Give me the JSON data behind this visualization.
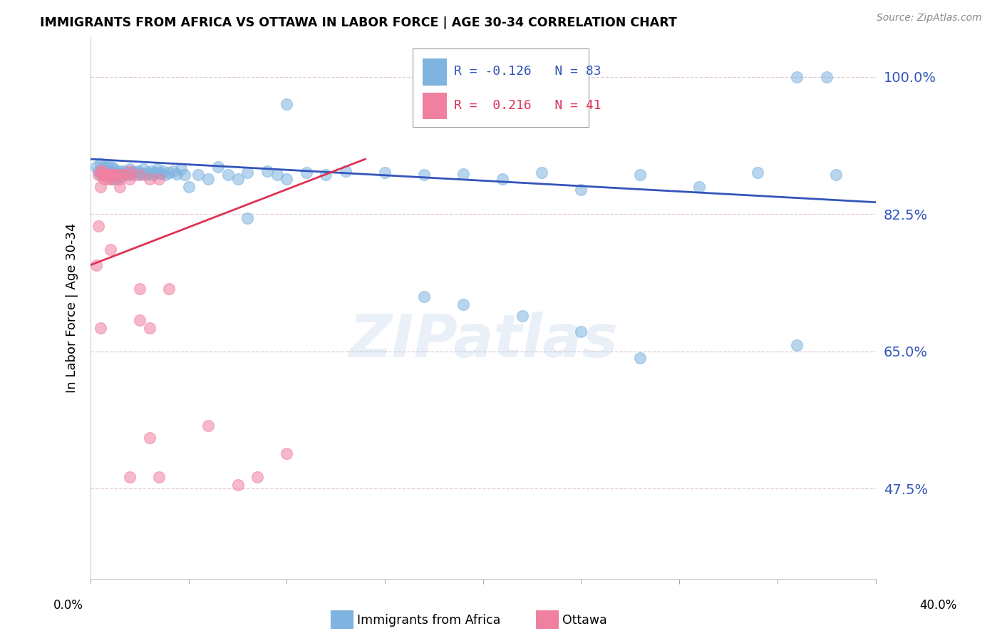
{
  "title": "IMMIGRANTS FROM AFRICA VS OTTAWA IN LABOR FORCE | AGE 30-34 CORRELATION CHART",
  "source": "Source: ZipAtlas.com",
  "ylabel": "In Labor Force | Age 30-34",
  "xlim": [
    0.0,
    0.4
  ],
  "ylim": [
    0.36,
    1.05
  ],
  "legend_R_blue": "-0.126",
  "legend_N_blue": "83",
  "legend_R_pink": "0.216",
  "legend_N_pink": "41",
  "blue_color": "#7fb3e0",
  "pink_color": "#f080a0",
  "trendline_blue_color": "#3355bb",
  "trendline_pink_color": "#dd3355",
  "watermark": "ZIPatlas",
  "blue_trendline_x": [
    0.0,
    0.4
  ],
  "blue_trendline_y": [
    0.895,
    0.84
  ],
  "pink_trendline_x": [
    0.0,
    0.14
  ],
  "pink_trendline_y": [
    0.76,
    0.895
  ],
  "blue_scatter_x": [
    0.003,
    0.004,
    0.005,
    0.005,
    0.006,
    0.007,
    0.007,
    0.008,
    0.008,
    0.009,
    0.009,
    0.01,
    0.01,
    0.011,
    0.011,
    0.012,
    0.012,
    0.013,
    0.013,
    0.014,
    0.015,
    0.015,
    0.016,
    0.017,
    0.018,
    0.019,
    0.02,
    0.021,
    0.022,
    0.023,
    0.024,
    0.025,
    0.026,
    0.027,
    0.028,
    0.029,
    0.03,
    0.031,
    0.032,
    0.033,
    0.034,
    0.035,
    0.036,
    0.037,
    0.038,
    0.04,
    0.042,
    0.044,
    0.046,
    0.048,
    0.05,
    0.055,
    0.06,
    0.065,
    0.07,
    0.075,
    0.08,
    0.09,
    0.095,
    0.1,
    0.11,
    0.12,
    0.13,
    0.15,
    0.17,
    0.19,
    0.21,
    0.23,
    0.25,
    0.28,
    0.31,
    0.34,
    0.36,
    0.375,
    0.36,
    0.38,
    0.17,
    0.19,
    0.22,
    0.25,
    0.28,
    0.1,
    0.08
  ],
  "blue_scatter_y": [
    0.885,
    0.88,
    0.89,
    0.875,
    0.885,
    0.88,
    0.875,
    0.885,
    0.88,
    0.875,
    0.885,
    0.88,
    0.875,
    0.885,
    0.87,
    0.882,
    0.875,
    0.878,
    0.87,
    0.875,
    0.88,
    0.872,
    0.876,
    0.88,
    0.875,
    0.878,
    0.882,
    0.876,
    0.879,
    0.875,
    0.88,
    0.878,
    0.876,
    0.882,
    0.875,
    0.878,
    0.876,
    0.88,
    0.875,
    0.878,
    0.882,
    0.878,
    0.876,
    0.88,
    0.875,
    0.878,
    0.88,
    0.876,
    0.882,
    0.875,
    0.86,
    0.875,
    0.87,
    0.885,
    0.875,
    0.87,
    0.878,
    0.88,
    0.875,
    0.87,
    0.878,
    0.875,
    0.88,
    0.878,
    0.875,
    0.876,
    0.87,
    0.878,
    0.856,
    0.875,
    0.86,
    0.878,
    0.658,
    1.0,
    1.0,
    0.875,
    0.72,
    0.71,
    0.695,
    0.675,
    0.642,
    0.965,
    0.82
  ],
  "pink_scatter_x": [
    0.003,
    0.004,
    0.004,
    0.005,
    0.005,
    0.006,
    0.006,
    0.007,
    0.007,
    0.008,
    0.009,
    0.009,
    0.01,
    0.01,
    0.011,
    0.012,
    0.014,
    0.016,
    0.02,
    0.025,
    0.01,
    0.015,
    0.02,
    0.025,
    0.03,
    0.035,
    0.04,
    0.005,
    0.008,
    0.012,
    0.015,
    0.02,
    0.025,
    0.03,
    0.06,
    0.075,
    0.085,
    0.1,
    0.02,
    0.03,
    0.035
  ],
  "pink_scatter_y": [
    0.76,
    0.81,
    0.875,
    0.88,
    0.86,
    0.88,
    0.875,
    0.875,
    0.87,
    0.875,
    0.87,
    0.875,
    0.875,
    0.875,
    0.87,
    0.875,
    0.875,
    0.875,
    0.88,
    0.875,
    0.78,
    0.87,
    0.875,
    0.73,
    0.68,
    0.87,
    0.73,
    0.68,
    0.875,
    0.875,
    0.86,
    0.87,
    0.69,
    0.87,
    0.555,
    0.48,
    0.49,
    0.52,
    0.49,
    0.54,
    0.49
  ]
}
